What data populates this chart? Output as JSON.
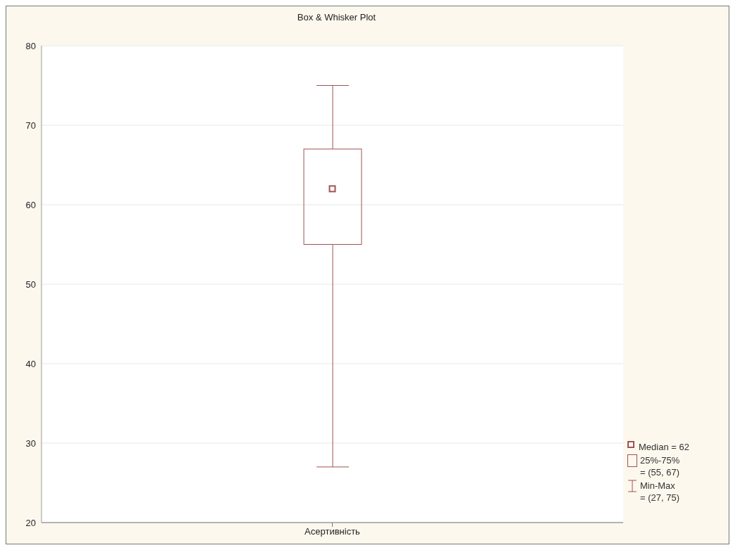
{
  "chart_data": {
    "type": "box",
    "title": "Box & Whisker Plot",
    "categories": [
      "Асертивність"
    ],
    "series": [
      {
        "color": "#a05252",
        "boxes": [
          {
            "low": 27,
            "q1": 55,
            "median": 62,
            "q3": 67,
            "high": 75
          }
        ]
      }
    ],
    "ylim": [
      20,
      80
    ],
    "yticks": [
      20,
      30,
      40,
      50,
      60,
      70,
      80
    ],
    "grid": "y",
    "marker": "square",
    "annotations": [
      "Median = 62",
      "25%-75%\n= (55, 67)",
      "Min-Max\n= (27, 75)"
    ]
  }
}
